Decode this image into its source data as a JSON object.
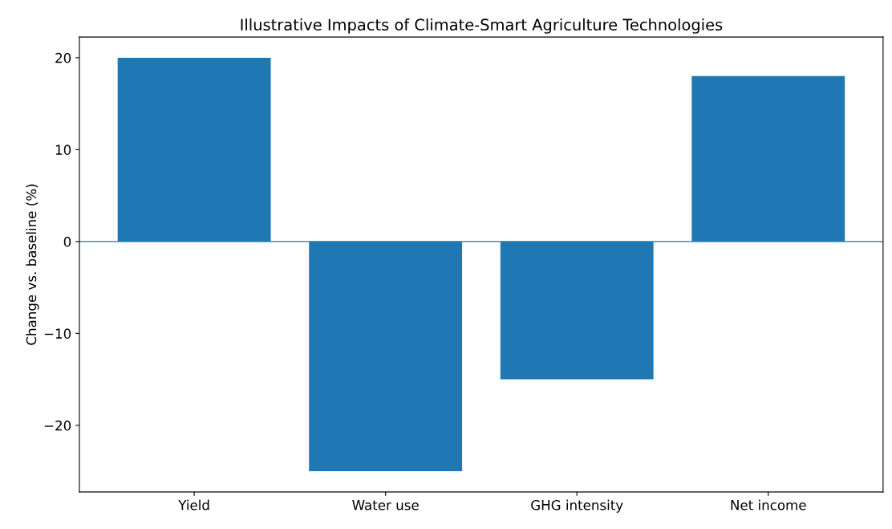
{
  "chart_data": {
    "type": "bar",
    "title": "Illustrative Impacts of Climate-Smart Agriculture Technologies",
    "ylabel": "Change vs. baseline (%)",
    "categories": [
      "Yield",
      "Water use",
      "GHG intensity",
      "Net income"
    ],
    "values": [
      20,
      -25,
      -15,
      18
    ],
    "color": "#1f77b4",
    "ylim": [
      -27.25,
      22.25
    ],
    "yticks": [
      {
        "value": -20,
        "label": "−20"
      },
      {
        "value": -10,
        "label": "−10"
      },
      0,
      10,
      20
    ],
    "ref_lines": [
      {
        "axis": "y",
        "value": 0,
        "color": "#1f77b4"
      }
    ],
    "grid": false
  }
}
